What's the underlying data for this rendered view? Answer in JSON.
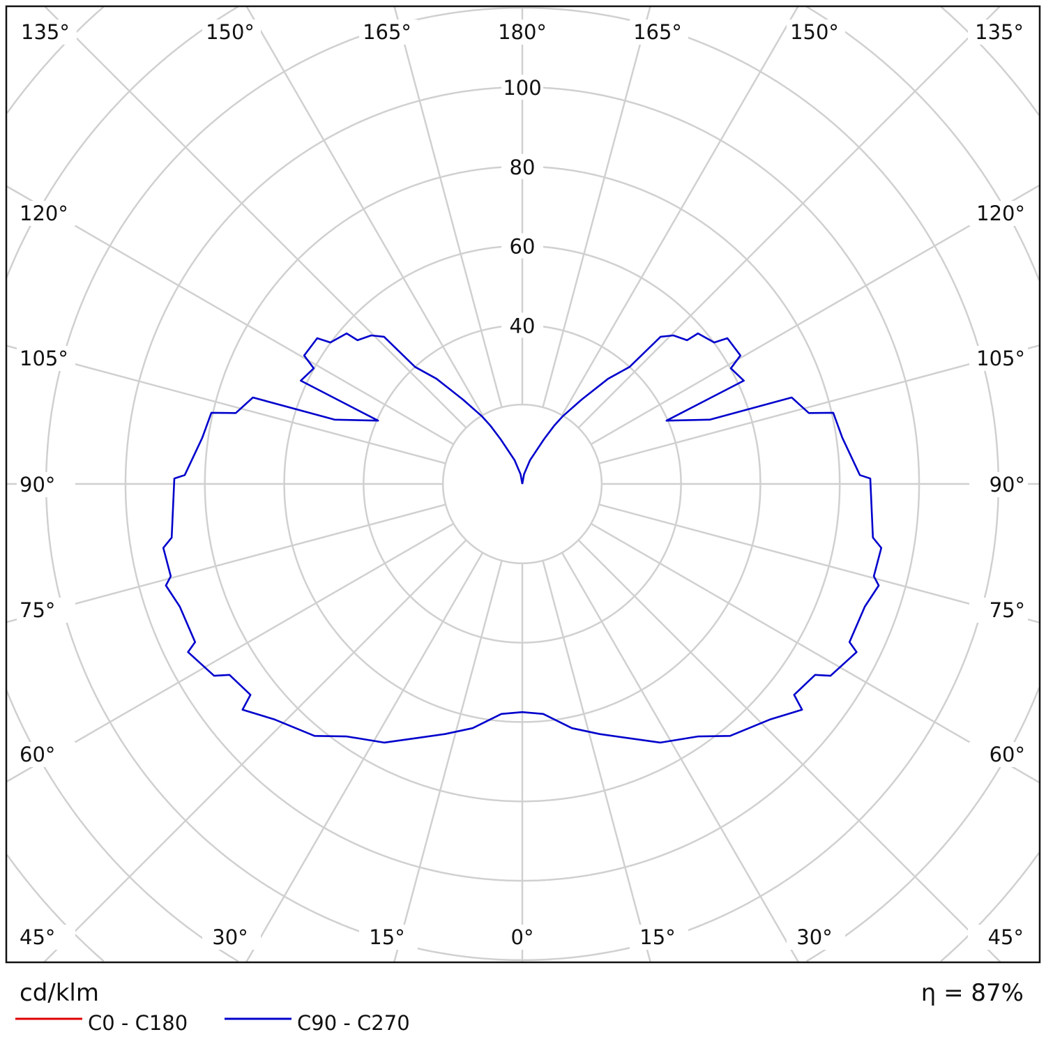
{
  "chart_data": {
    "type": "polar",
    "unit_label": "cd/klm",
    "efficiency_label": "η = 87%",
    "radial_ticks": [
      40,
      60,
      80,
      100
    ],
    "radial_grid_step": 20,
    "angle_grid_step_deg": 15,
    "angle_labels_top": [
      "135°",
      "150°",
      "165°",
      "180°",
      "165°",
      "150°",
      "135°"
    ],
    "angle_labels_left": [
      "120°",
      "105°",
      "90°",
      "75°",
      "60°"
    ],
    "angle_labels_right": [
      "120°",
      "105°",
      "90°",
      "75°",
      "60°"
    ],
    "angle_labels_bottom": [
      "45°",
      "30°",
      "15°",
      "0°",
      "15°",
      "30°",
      "45°"
    ],
    "grid": true,
    "legend_position": "bottom-left",
    "series": [
      {
        "name": "C0 - C180",
        "color": "#e00000",
        "gamma": [],
        "values": []
      },
      {
        "name": "C90 - C270",
        "color": "#0000cc",
        "symmetric": true,
        "gamma": [
          0,
          5.2,
          11.5,
          17.2,
          22.5,
          28.1,
          34.8,
          39.5,
          46.4,
          51.1,
          52.2,
          56.9,
          58.1,
          63.3,
          64.2,
          70.3,
          74.1,
          75.3,
          79.9,
          81.3,
          90.9,
          91.5,
          98.2,
          102.9,
          103.9,
          107.8,
          108.9,
          113.7,
          115.0,
          119.0,
          120.5,
          125.4,
          126.4,
          130.6,
          131.1,
          134.5,
          136.8,
          137.5,
          140.8,
          144.9,
          149.1,
          151.3,
          154.2,
          162,
          170,
          180
        ],
        "values": [
          57.5,
          58.2,
          62.8,
          66.0,
          69.3,
          73.9,
          77.5,
          82.3,
          86.1,
          90.6,
          86.7,
          88.1,
          91.5,
          94.3,
          91.6,
          91.7,
          93.4,
          91.6,
          91.9,
          89.4,
          87.7,
          85.1,
          81.5,
          80.4,
          74.4,
          71.3,
          50.0,
          39.7,
          61.6,
          60.1,
          63.8,
          63.4,
          60.1,
          58.3,
          55.1,
          53.4,
          50.9,
          40.0,
          34.2,
          26.0,
          19.9,
          16.8,
          12.5,
          6.3,
          2.5,
          0
        ]
      }
    ]
  }
}
